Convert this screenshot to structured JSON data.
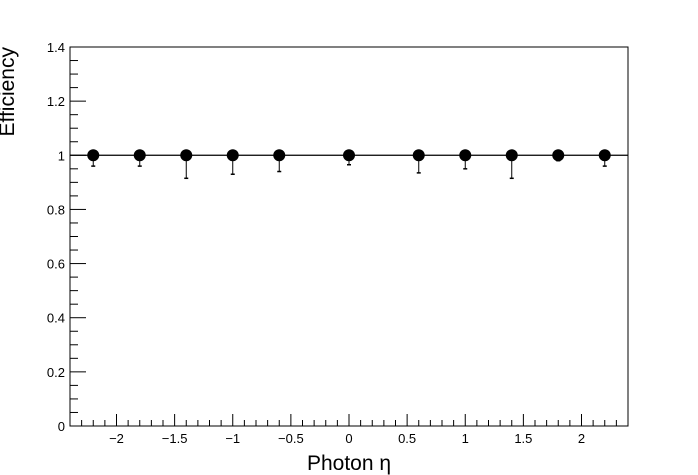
{
  "chart_data": {
    "type": "scatter",
    "title": "",
    "xlabel": "Photon η",
    "ylabel": "Efficiency",
    "xlim": [
      -2.4,
      2.4
    ],
    "ylim": [
      0,
      1.4
    ],
    "grid": false,
    "reference_line_y": 1,
    "x_ticks": [
      {
        "value": -2,
        "label": "−2"
      },
      {
        "value": -1.5,
        "label": "−1.5"
      },
      {
        "value": -1,
        "label": "−1"
      },
      {
        "value": -0.5,
        "label": "−0.5"
      },
      {
        "value": 0,
        "label": "0"
      },
      {
        "value": 0.5,
        "label": "0.5"
      },
      {
        "value": 1,
        "label": "1"
      },
      {
        "value": 1.5,
        "label": "1.5"
      },
      {
        "value": 2,
        "label": "2"
      }
    ],
    "y_ticks": [
      {
        "value": 0,
        "label": "0"
      },
      {
        "value": 0.2,
        "label": "0.2"
      },
      {
        "value": 0.4,
        "label": "0.4"
      },
      {
        "value": 0.6,
        "label": "0.6"
      },
      {
        "value": 0.8,
        "label": "0.8"
      },
      {
        "value": 1,
        "label": "1"
      },
      {
        "value": 1.2,
        "label": "1.2"
      },
      {
        "value": 1.4,
        "label": "1.4"
      }
    ],
    "x_minor_step": 0.1,
    "y_minor_step": 0.05,
    "series": [
      {
        "points": [
          {
            "x": -2.2,
            "xerr": 0.2,
            "y": 1.0,
            "yerr_low": 0.04,
            "yerr_high": 0.0
          },
          {
            "x": -1.8,
            "xerr": 0.2,
            "y": 1.0,
            "yerr_low": 0.04,
            "yerr_high": 0.0
          },
          {
            "x": -1.4,
            "xerr": 0.2,
            "y": 1.0,
            "yerr_low": 0.085,
            "yerr_high": 0.0
          },
          {
            "x": -1.0,
            "xerr": 0.2,
            "y": 1.0,
            "yerr_low": 0.07,
            "yerr_high": 0.0
          },
          {
            "x": -0.6,
            "xerr": 0.2,
            "y": 1.0,
            "yerr_low": 0.06,
            "yerr_high": 0.0
          },
          {
            "x": 0.0,
            "xerr": 0.4,
            "y": 1.0,
            "yerr_low": 0.035,
            "yerr_high": 0.0
          },
          {
            "x": 0.6,
            "xerr": 0.2,
            "y": 1.0,
            "yerr_low": 0.065,
            "yerr_high": 0.0
          },
          {
            "x": 1.0,
            "xerr": 0.2,
            "y": 1.0,
            "yerr_low": 0.05,
            "yerr_high": 0.0
          },
          {
            "x": 1.4,
            "xerr": 0.2,
            "y": 1.0,
            "yerr_low": 0.085,
            "yerr_high": 0.0
          },
          {
            "x": 1.8,
            "xerr": 0.2,
            "y": 1.0,
            "yerr_low": 0.02,
            "yerr_high": 0.0
          },
          {
            "x": 2.2,
            "xerr": 0.2,
            "y": 1.0,
            "yerr_low": 0.04,
            "yerr_high": 0.0
          }
        ]
      }
    ]
  }
}
